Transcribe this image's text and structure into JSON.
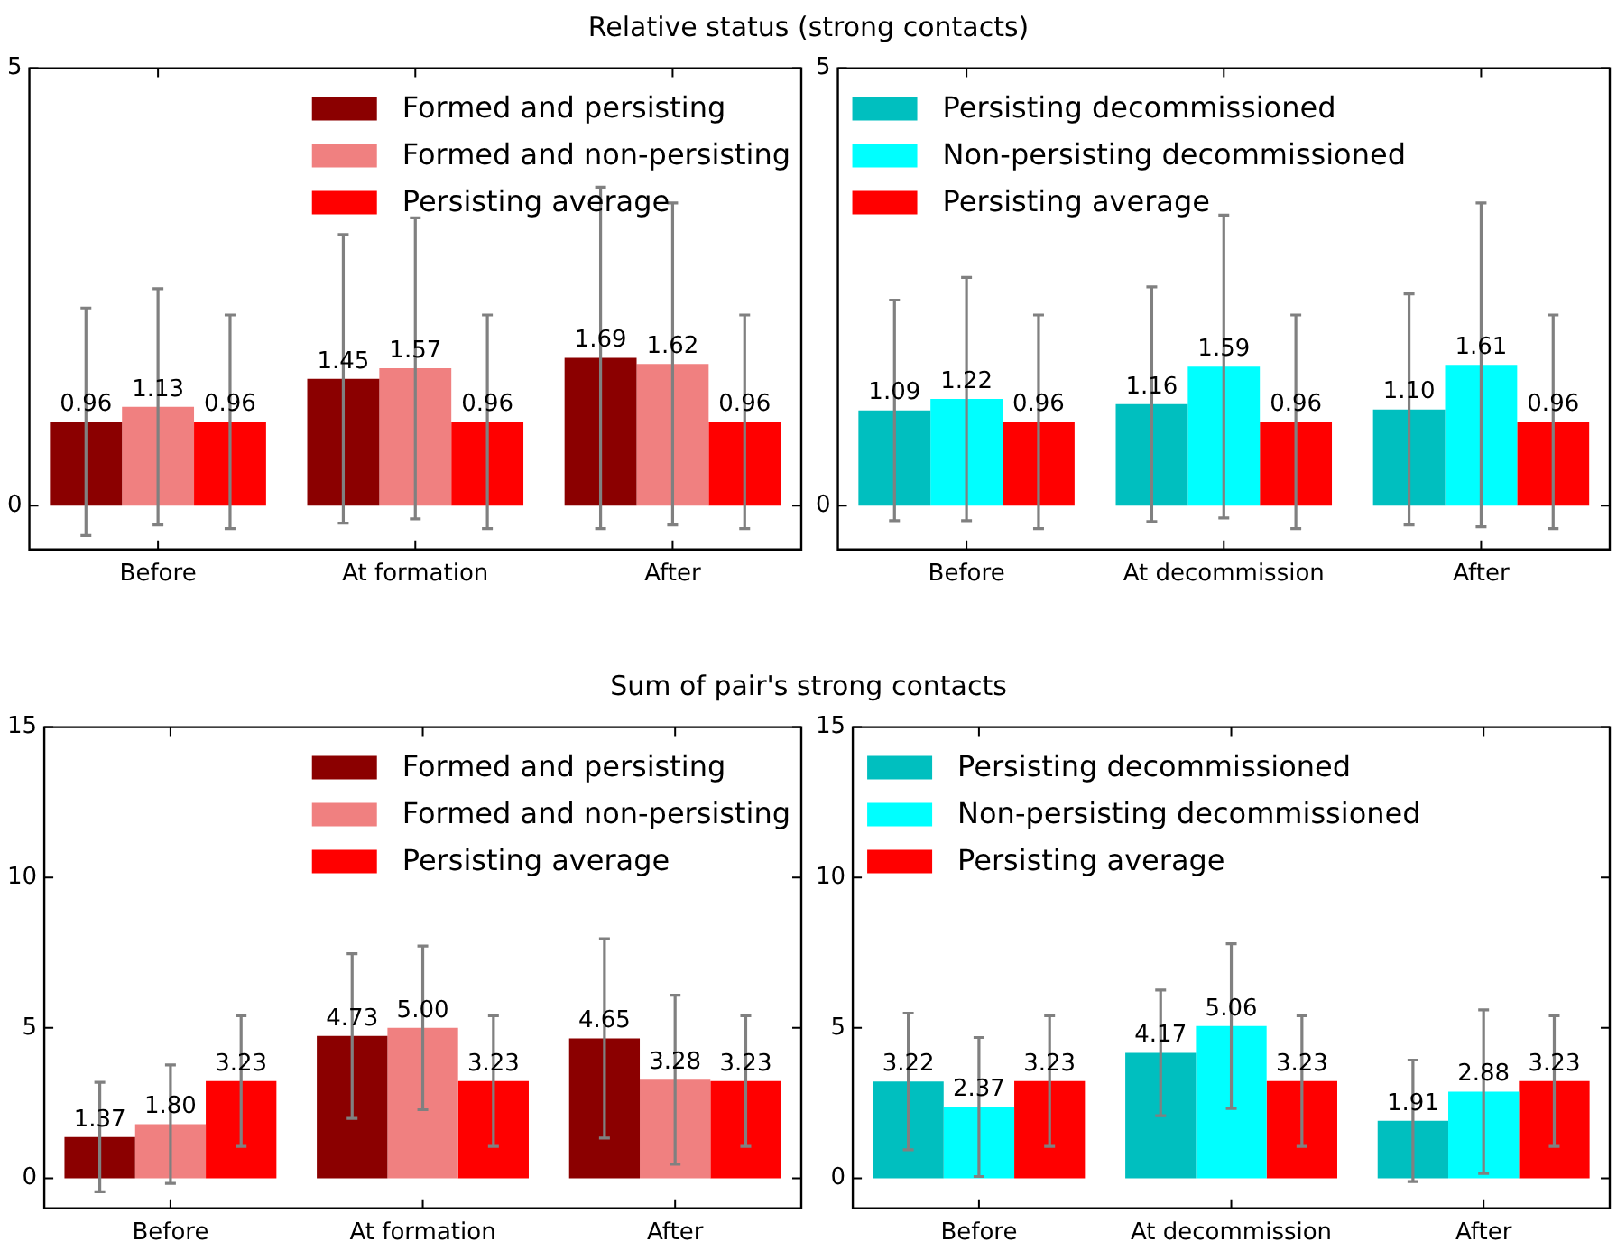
{
  "chart_data": [
    {
      "type": "bar",
      "title": "Relative status (strong contacts)",
      "categories": [
        "Before",
        "At formation",
        "After"
      ],
      "ylim": [
        -0.5,
        5
      ],
      "yticks": [
        0,
        5
      ],
      "grid": false,
      "legend": "top right",
      "series": [
        {
          "name": "Formed and persisting",
          "color": "#8b0000",
          "values": [
            0.96,
            1.45,
            1.69
          ],
          "value_labels": [
            "0.96",
            "1.45",
            "1.69"
          ],
          "errors": [
            1.3,
            1.65,
            1.95
          ]
        },
        {
          "name": "Formed and non-persisting",
          "color": "#f08080",
          "values": [
            1.13,
            1.57,
            1.62
          ],
          "value_labels": [
            "1.13",
            "1.57",
            "1.62"
          ],
          "errors": [
            1.35,
            1.72,
            1.84
          ]
        },
        {
          "name": "Persisting average",
          "color": "#ff0000",
          "values": [
            0.96,
            0.96,
            0.96
          ],
          "value_labels": [
            "0.96",
            "0.96",
            "0.96"
          ],
          "errors": [
            1.22,
            1.22,
            1.22
          ]
        }
      ]
    },
    {
      "type": "bar",
      "categories": [
        "Before",
        "At decommission",
        "After"
      ],
      "ylim": [
        -0.5,
        5
      ],
      "yticks": [
        0,
        5
      ],
      "grid": false,
      "legend": "top left",
      "series": [
        {
          "name": "Persisting decommissioned",
          "color": "#00bfbf",
          "values": [
            1.09,
            1.16,
            1.1
          ],
          "value_labels": [
            "1.09",
            "1.16",
            "1.10"
          ],
          "errors": [
            1.26,
            1.34,
            1.32
          ]
        },
        {
          "name": "Non-persisting decommissioned",
          "color": "#00ffff",
          "values": [
            1.22,
            1.59,
            1.61
          ],
          "value_labels": [
            "1.22",
            "1.59",
            "1.61"
          ],
          "errors": [
            1.39,
            1.73,
            1.85
          ]
        },
        {
          "name": "Persisting average",
          "color": "#ff0000",
          "values": [
            0.96,
            0.96,
            0.96
          ],
          "value_labels": [
            "0.96",
            "0.96",
            "0.96"
          ],
          "errors": [
            1.22,
            1.22,
            1.22
          ]
        }
      ]
    },
    {
      "type": "bar",
      "title": "Sum of pair's strong contacts",
      "categories": [
        "Before",
        "At formation",
        "After"
      ],
      "ylim": [
        -1,
        15
      ],
      "yticks": [
        0,
        5,
        10,
        15
      ],
      "grid": false,
      "legend": "top right",
      "series": [
        {
          "name": "Formed and persisting",
          "color": "#8b0000",
          "values": [
            1.37,
            4.73,
            4.65
          ],
          "value_labels": [
            "1.37",
            "4.73",
            "4.65"
          ],
          "errors": [
            1.82,
            2.74,
            3.31
          ]
        },
        {
          "name": "Formed and non-persisting",
          "color": "#f08080",
          "values": [
            1.8,
            5.0,
            3.28
          ],
          "value_labels": [
            "1.80",
            "5.00",
            "3.28"
          ],
          "errors": [
            1.97,
            2.72,
            2.81
          ]
        },
        {
          "name": "Persisting average",
          "color": "#ff0000",
          "values": [
            3.23,
            3.23,
            3.23
          ],
          "value_labels": [
            "3.23",
            "3.23",
            "3.23"
          ],
          "errors": [
            2.17,
            2.17,
            2.17
          ]
        }
      ]
    },
    {
      "type": "bar",
      "categories": [
        "Before",
        "At decommission",
        "After"
      ],
      "ylim": [
        -1,
        15
      ],
      "yticks": [
        0,
        5,
        10,
        15
      ],
      "grid": false,
      "legend": "top left",
      "series": [
        {
          "name": "Persisting decommissioned",
          "color": "#00bfbf",
          "values": [
            3.22,
            4.17,
            1.91
          ],
          "value_labels": [
            "3.22",
            "4.17",
            "1.91"
          ],
          "errors": [
            2.27,
            2.09,
            2.02
          ]
        },
        {
          "name": "Non-persisting decommissioned",
          "color": "#00ffff",
          "values": [
            2.37,
            5.06,
            2.88
          ],
          "value_labels": [
            "2.37",
            "5.06",
            "2.88"
          ],
          "errors": [
            2.31,
            2.74,
            2.72
          ]
        },
        {
          "name": "Persisting average",
          "color": "#ff0000",
          "values": [
            3.23,
            3.23,
            3.23
          ],
          "value_labels": [
            "3.23",
            "3.23",
            "3.23"
          ],
          "errors": [
            2.17,
            2.17,
            2.17
          ]
        }
      ]
    }
  ]
}
